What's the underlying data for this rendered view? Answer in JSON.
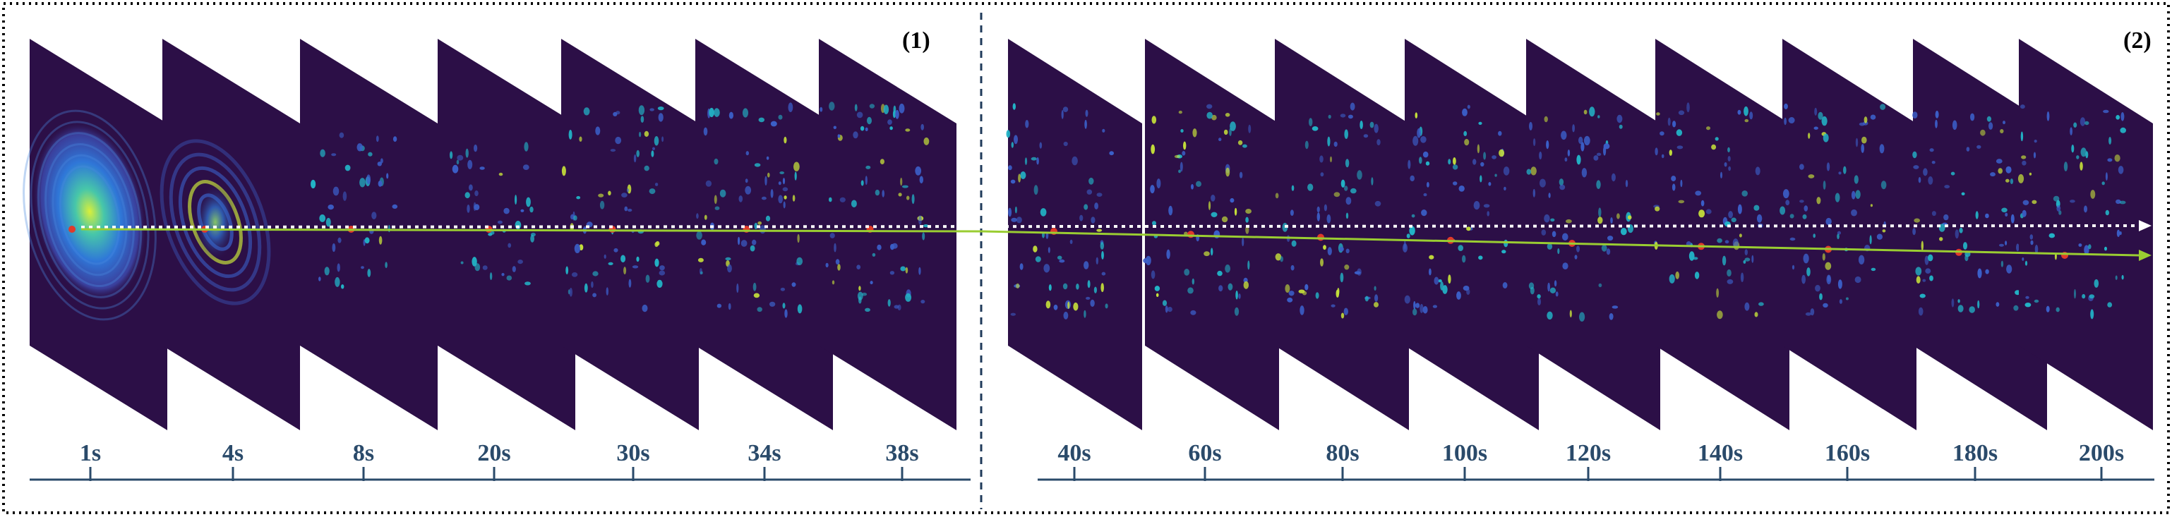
{
  "panels": [
    {
      "label": "(1)",
      "frames": [
        "1s",
        "4s",
        "8s",
        "20s",
        "30s",
        "34s",
        "38s"
      ]
    },
    {
      "label": "(2)",
      "frames": [
        "40s",
        "60s",
        "80s",
        "100s",
        "120s",
        "140s",
        "160s",
        "180s",
        "200s"
      ]
    }
  ],
  "colors": {
    "frame_bg": "#2c0f47",
    "speckle_low": "#3b5fc8",
    "speckle_mid": "#22b3c6",
    "speckle_high": "#c6e13a",
    "marker": "#e03a2a",
    "reference_line": "#ffffff",
    "trajectory_line": "#9acd32",
    "axis_line": "#2a4a6a",
    "panel_border": "#000000",
    "divider": "#1f3a5a"
  }
}
